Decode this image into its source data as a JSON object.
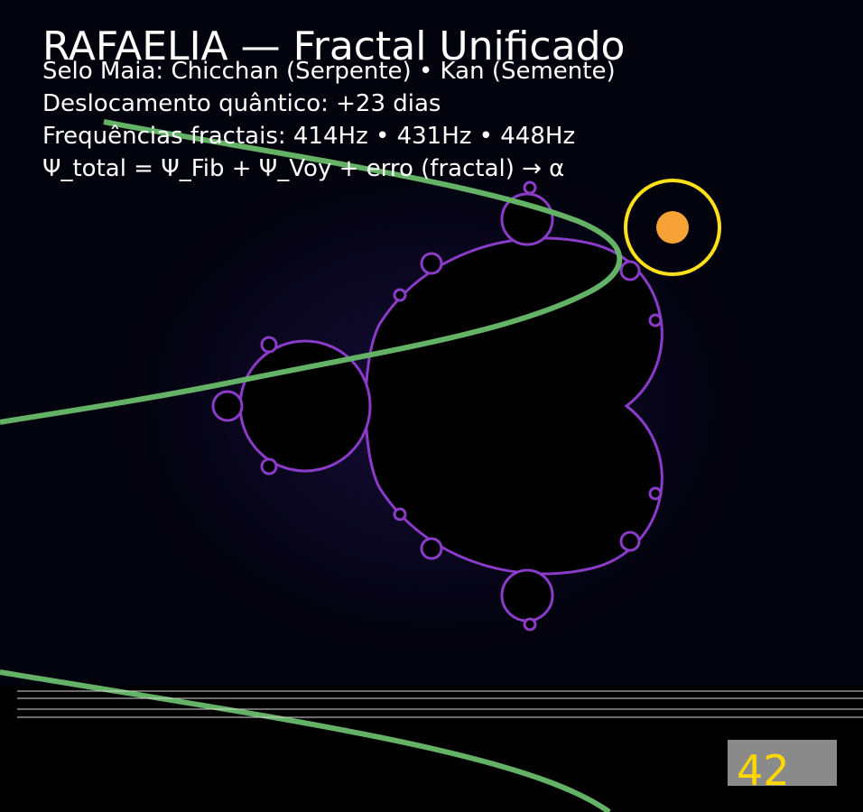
{
  "title": "RAFAELIA — Fractal Unificado",
  "lines": [
    "Selo Maia: Chicchan (Serpente)  •  Kan (Semente)",
    "Deslocamento quântico: +23 dias",
    "Frequências fractais: 414Hz • 431Hz • 448Hz",
    "Ψ_total = Ψ_Fib + Ψ_Voy + erro (fractal) → α"
  ],
  "badge": {
    "value": "42"
  },
  "colors": {
    "background": "#000000",
    "fractal_interior": "#000000",
    "fractal_edge": "#8a3cc8",
    "curve": "#63b265",
    "sun": "#f7a236",
    "sun_ring": "#ffe01a",
    "badge_bg": "#8a8a8a",
    "badge_text": "#ffd700"
  }
}
